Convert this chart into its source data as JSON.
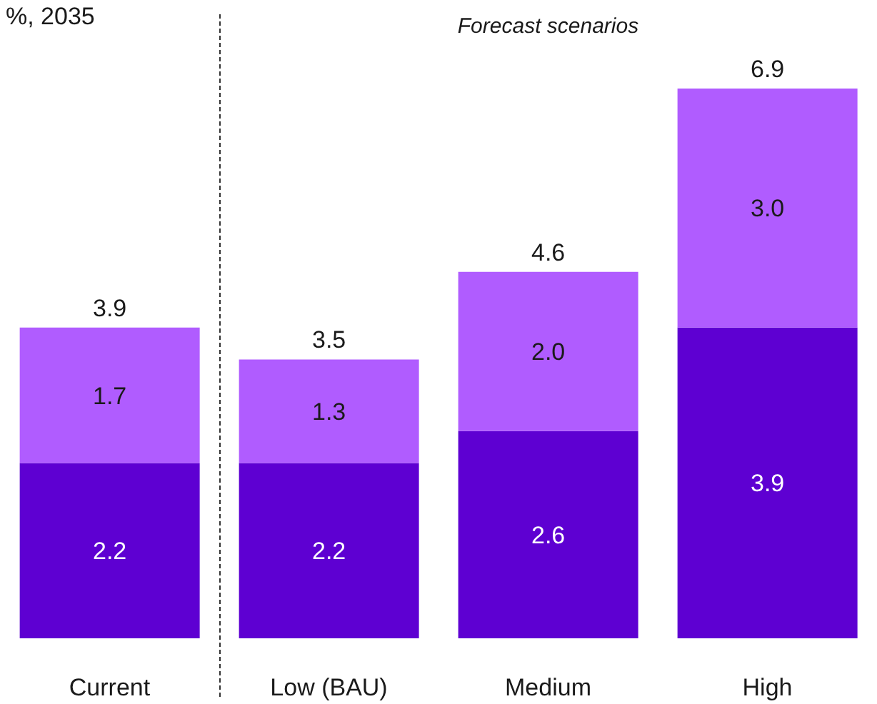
{
  "chart_data": {
    "type": "bar",
    "ylabel": "%, 2035",
    "annotations": [
      "Forecast scenarios"
    ],
    "categories": [
      "Current",
      "Low (BAU)",
      "Medium",
      "High"
    ],
    "series": [
      {
        "color": "#5e00d2",
        "values": [
          2.2,
          2.2,
          2.6,
          3.9
        ],
        "value_labels": [
          "2.2",
          "2.2",
          "2.6",
          "3.9"
        ]
      },
      {
        "color": "#b05cff",
        "values": [
          1.7,
          1.3,
          2.0,
          3.0
        ],
        "value_labels": [
          "1.7",
          "1.3",
          "2.0",
          "3.0"
        ]
      }
    ],
    "stacked": true,
    "totals": [
      "3.9",
      "3.5",
      "4.6",
      "6.9"
    ]
  }
}
